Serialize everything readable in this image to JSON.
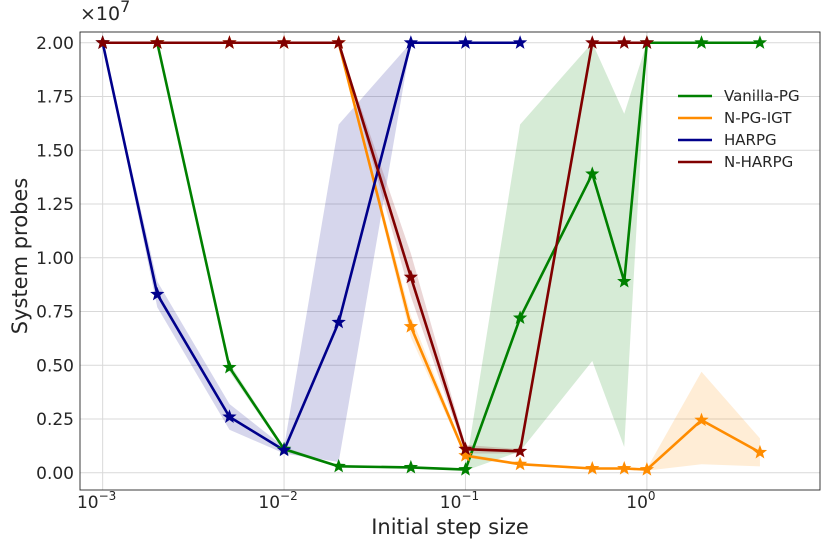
{
  "chart_data": {
    "type": "line",
    "xlabel": "Initial step size",
    "ylabel": "System probes",
    "x_scale": "log",
    "xlim": [
      0.00075,
      9
    ],
    "ylim": [
      -0.08,
      2.05
    ],
    "y_multiplier": "×10",
    "y_multiplier_exponent": "7",
    "x_ticks": [
      {
        "value": 0.001,
        "base": "10",
        "exp": "−3"
      },
      {
        "value": 0.01,
        "base": "10",
        "exp": "−2"
      },
      {
        "value": 0.1,
        "base": "10",
        "exp": "−1"
      },
      {
        "value": 1,
        "base": "10",
        "exp": "0"
      }
    ],
    "y_ticks": [
      {
        "value": 0.0,
        "label": "0.00"
      },
      {
        "value": 0.25,
        "label": "0.25"
      },
      {
        "value": 0.5,
        "label": "0.50"
      },
      {
        "value": 0.75,
        "label": "0.75"
      },
      {
        "value": 1.0,
        "label": "1.00"
      },
      {
        "value": 1.25,
        "label": "1.25"
      },
      {
        "value": 1.5,
        "label": "1.50"
      },
      {
        "value": 1.75,
        "label": "1.75"
      },
      {
        "value": 2.0,
        "label": "2.00"
      }
    ],
    "grid": true,
    "legend_position": "right",
    "series": [
      {
        "name": "Vanilla-PG",
        "color": "#008000",
        "x": [
          0.001,
          0.002,
          0.005,
          0.01,
          0.02,
          0.05,
          0.1,
          0.2,
          0.5,
          0.75,
          1,
          2,
          4.2
        ],
        "y": [
          2.0,
          2.0,
          0.49,
          0.11,
          0.03,
          0.025,
          0.015,
          0.72,
          1.39,
          0.89,
          2.0,
          2.0,
          2.0
        ],
        "band_low": [
          2.0,
          2.0,
          0.47,
          0.1,
          0.025,
          0.02,
          0.01,
          0.1,
          0.52,
          0.12,
          2.0,
          2.0,
          2.0
        ],
        "band_high": [
          2.0,
          2.0,
          0.51,
          0.12,
          0.035,
          0.03,
          0.02,
          1.62,
          2.0,
          1.67,
          2.0,
          2.0,
          2.0
        ]
      },
      {
        "name": "N-PG-IGT",
        "color": "#ff8c00",
        "x": [
          0.001,
          0.002,
          0.005,
          0.01,
          0.02,
          0.05,
          0.1,
          0.2,
          0.5,
          0.75,
          1,
          2,
          4.2
        ],
        "y": [
          2.0,
          2.0,
          2.0,
          2.0,
          2.0,
          0.68,
          0.08,
          0.04,
          0.02,
          0.02,
          0.015,
          0.245,
          0.095
        ],
        "band_low": [
          2.0,
          2.0,
          2.0,
          2.0,
          2.0,
          0.63,
          0.07,
          0.035,
          0.015,
          0.015,
          0.01,
          0.04,
          0.03
        ],
        "band_high": [
          2.0,
          2.0,
          2.0,
          2.0,
          2.0,
          0.73,
          0.09,
          0.045,
          0.025,
          0.025,
          0.02,
          0.47,
          0.16
        ]
      },
      {
        "name": "HARPG",
        "color": "#00008b",
        "x": [
          0.001,
          0.002,
          0.005,
          0.01,
          0.02,
          0.05,
          0.1,
          0.2
        ],
        "y": [
          2.0,
          0.83,
          0.26,
          0.105,
          0.7,
          2.0,
          2.0,
          2.0
        ],
        "band_low": [
          2.0,
          0.77,
          0.2,
          0.09,
          0.05,
          2.0,
          2.0,
          2.0
        ],
        "band_high": [
          2.0,
          0.89,
          0.32,
          0.12,
          1.62,
          2.0,
          2.0,
          2.0
        ]
      },
      {
        "name": "N-HARPG",
        "color": "#800000",
        "x": [
          0.001,
          0.002,
          0.005,
          0.01,
          0.02,
          0.05,
          0.1,
          0.2,
          0.5,
          0.75,
          1
        ],
        "y": [
          2.0,
          2.0,
          2.0,
          2.0,
          2.0,
          0.91,
          0.11,
          0.1,
          2.0,
          2.0,
          2.0
        ],
        "band_low": [
          2.0,
          2.0,
          2.0,
          2.0,
          2.0,
          0.82,
          0.09,
          0.09,
          2.0,
          2.0,
          2.0
        ],
        "band_high": [
          2.0,
          2.0,
          2.0,
          2.0,
          2.0,
          1.02,
          0.13,
          0.11,
          2.0,
          2.0,
          2.0
        ]
      }
    ]
  }
}
